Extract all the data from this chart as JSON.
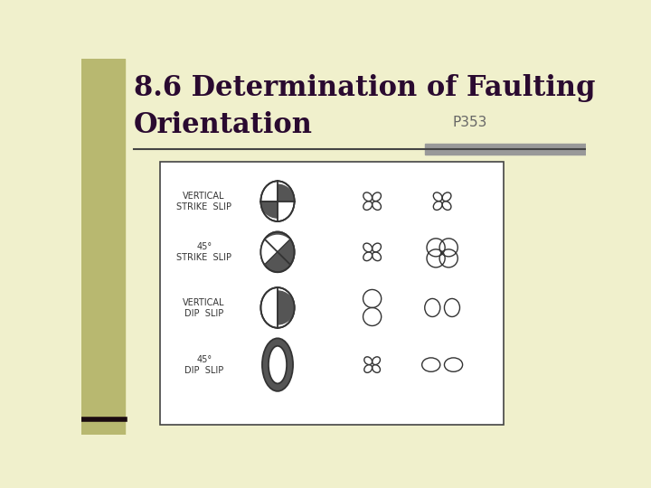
{
  "title_line1": "8.6 Determination of Faulting",
  "title_line2": "Orientation",
  "page_ref": "P353",
  "bg_color": "#f0f0cc",
  "left_bar_color": "#b8b870",
  "title_color": "#2a0a30",
  "box_bg": "#ffffff",
  "dark_fill": "#555555",
  "outline_color": "#333333",
  "rows": [
    {
      "label1": "VERTICAL",
      "label2": "STRIKE  SLIP"
    },
    {
      "label1": "45°",
      "label2": "STRIKE  SLIP"
    },
    {
      "label1": "VERTICAL",
      "label2": "DIP  SLIP"
    },
    {
      "label1": "45°",
      "label2": "DIP  SLIP"
    }
  ]
}
